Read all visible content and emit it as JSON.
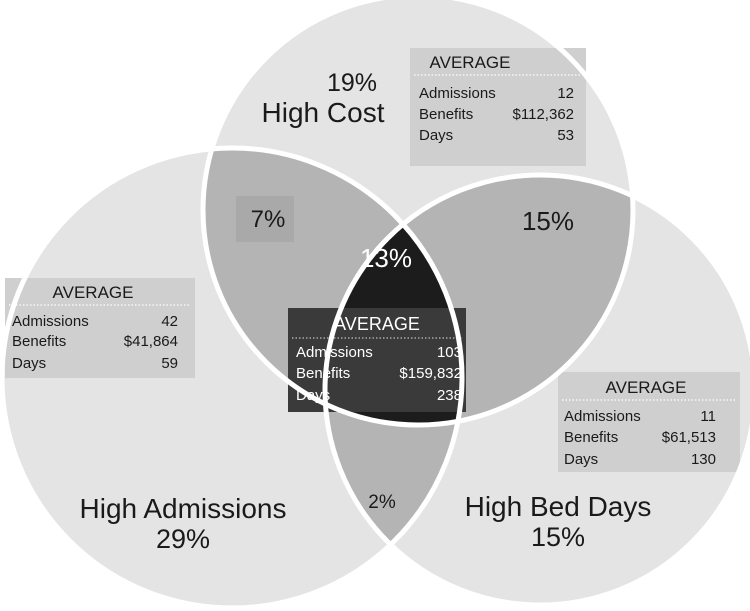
{
  "colors": {
    "outer_region": "#e4e4e4",
    "pair_region": "#b4b4b4",
    "center_region": "#1c1c1c",
    "panel_light": "#cfcfcf",
    "panel_dark": "#3a3a3a",
    "stroke": "#ffffff",
    "text_dark": "#1a1a1a",
    "text_light": "#ffffff"
  },
  "regions": {
    "high_cost": {
      "name": "High Cost",
      "percent": "19%"
    },
    "high_admissions": {
      "name": "High Admissions",
      "percent": "29%"
    },
    "high_bed_days": {
      "name": "High Bed Days",
      "percent": "15%"
    },
    "cost_admissions": {
      "percent": "7%"
    },
    "cost_bed_days": {
      "percent": "15%"
    },
    "admissions_bed_days": {
      "percent": "2%"
    },
    "all_three": {
      "percent": "13%"
    }
  },
  "averages": {
    "high_cost": {
      "heading": "AVERAGE",
      "rows": [
        {
          "label": "Admissions",
          "value": "12"
        },
        {
          "label": "Benefits",
          "value": "$112,362"
        },
        {
          "label": "Days",
          "value": "53"
        }
      ]
    },
    "high_admissions": {
      "heading": "AVERAGE",
      "rows": [
        {
          "label": "Admissions",
          "value": "42"
        },
        {
          "label": "Benefits",
          "value": "$41,864"
        },
        {
          "label": "Days",
          "value": "59"
        }
      ]
    },
    "all_three": {
      "heading": "AVERAGE",
      "rows": [
        {
          "label": "Admissions",
          "value": "103"
        },
        {
          "label": "Benefits",
          "value": "$159,832"
        },
        {
          "label": "Days",
          "value": "238"
        }
      ]
    },
    "high_bed_days": {
      "heading": "AVERAGE",
      "rows": [
        {
          "label": "Admissions",
          "value": "11"
        },
        {
          "label": "Benefits",
          "value": "$61,513"
        },
        {
          "label": "Days",
          "value": "130"
        }
      ]
    }
  }
}
